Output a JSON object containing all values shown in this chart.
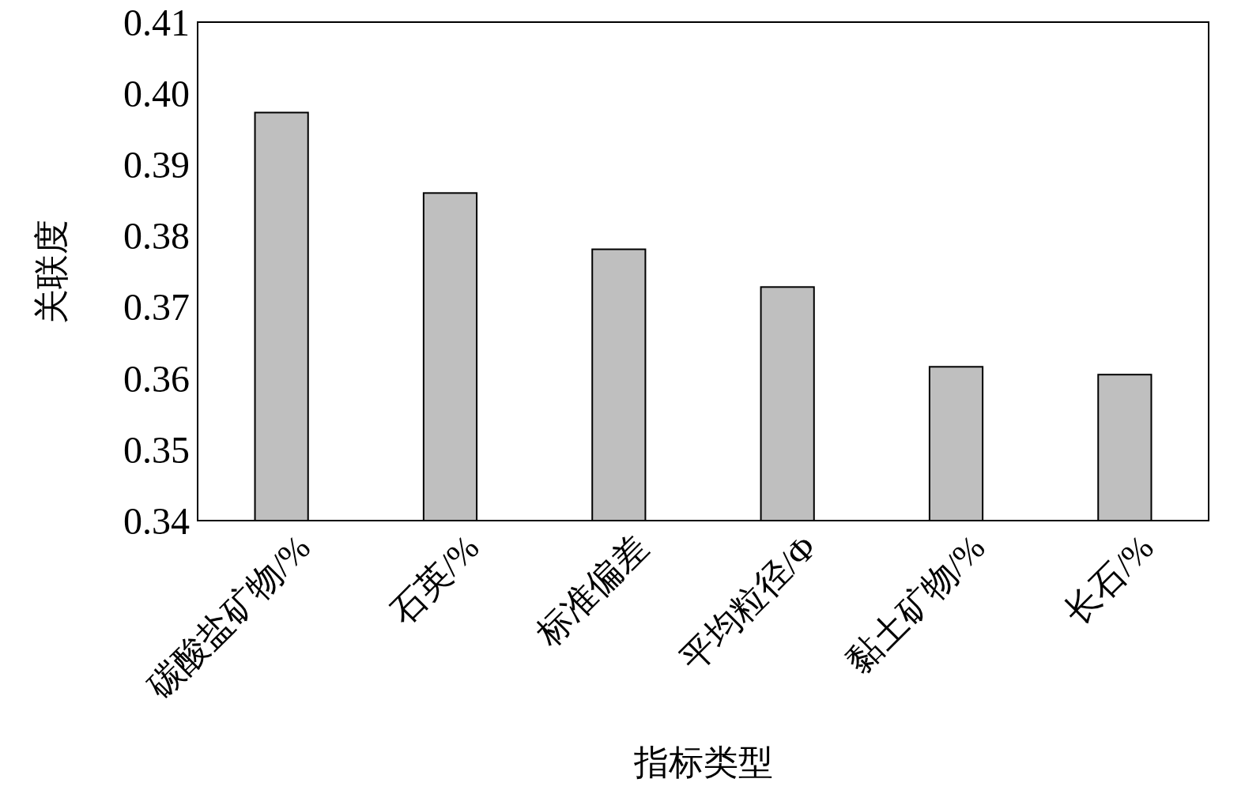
{
  "chart_data": {
    "type": "bar",
    "xlabel": "指标类型",
    "ylabel": "关联度",
    "categories": [
      "碳酸盐矿物/%",
      "石英/%",
      "标准偏差",
      "平均粒径/Φ",
      "黏土矿物/%",
      "长石/%"
    ],
    "values": [
      0.3973,
      0.386,
      0.3781,
      0.3728,
      0.3616,
      0.3605
    ],
    "color": "#bfbfbf",
    "ylim": [
      0.34,
      0.41
    ],
    "yticks": [
      0.34,
      0.35,
      0.36,
      0.37,
      0.38,
      0.39,
      {
        "value": 0.4,
        "label": "0.40"
      },
      0.41
    ],
    "grid": false
  }
}
